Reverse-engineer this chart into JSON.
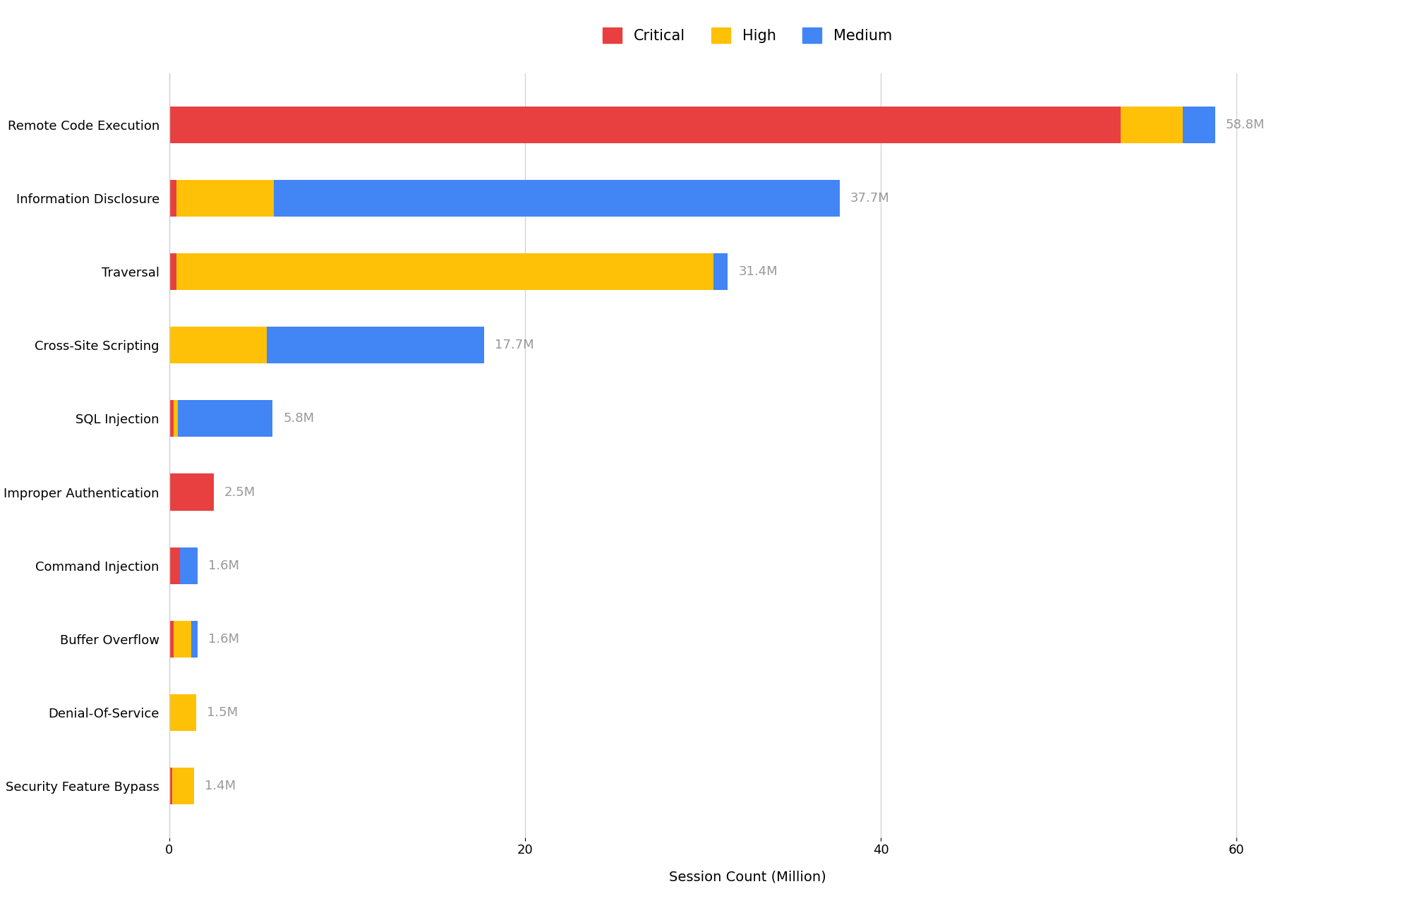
{
  "categories": [
    "Remote Code Execution",
    "Information Disclosure",
    "Traversal",
    "Cross-Site Scripting",
    "SQL Injection",
    "Improper Authentication",
    "Command Injection",
    "Buffer Overflow",
    "Denial-Of-Service",
    "Security Feature Bypass"
  ],
  "critical": [
    53.5,
    0.4,
    0.4,
    0.0,
    0.25,
    2.5,
    0.6,
    0.25,
    0.0,
    0.15
  ],
  "high": [
    3.5,
    5.5,
    30.2,
    5.5,
    0.25,
    0.0,
    0.0,
    1.0,
    1.5,
    1.25
  ],
  "medium": [
    1.8,
    31.8,
    0.8,
    12.2,
    5.3,
    0.0,
    1.0,
    0.35,
    0.0,
    0.0
  ],
  "totals": [
    "58.8M",
    "37.7M",
    "31.4M",
    "17.7M",
    "5.8M",
    "2.5M",
    "1.6M",
    "1.6M",
    "1.5M",
    "1.4M"
  ],
  "colors": {
    "critical": "#e84040",
    "high": "#FFC107",
    "medium": "#4285F4"
  },
  "xlabel": "Session Count (Million)",
  "xlim": [
    0,
    65
  ],
  "xticks": [
    0,
    20,
    40,
    60
  ],
  "background_color": "#ffffff",
  "legend_labels": [
    "Critical",
    "High",
    "Medium"
  ],
  "bar_height": 0.5,
  "grid_color": "#d0d0d0",
  "label_color": "#999999",
  "axis_fontsize": 14,
  "tick_fontsize": 13,
  "label_fontsize": 13,
  "legend_fontsize": 15
}
